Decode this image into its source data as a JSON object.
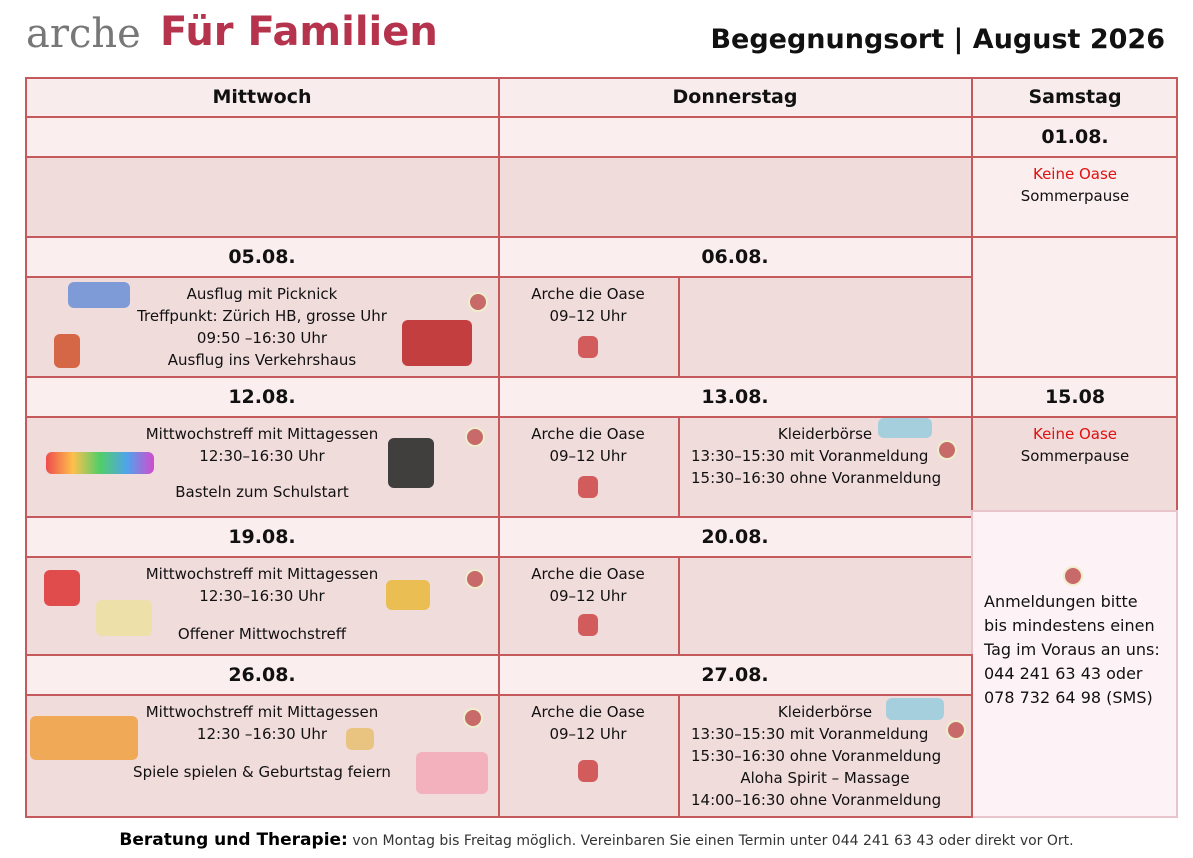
{
  "header": {
    "brand": "arche",
    "brand_accent": "Für Familien",
    "title": "Begegnungsort | August 2026"
  },
  "columns": [
    "Mittwoch",
    "Donnerstag",
    "Samstag"
  ],
  "weeks": [
    {
      "sat": {
        "date": "01.08.",
        "notice": "Keine Oase",
        "text": "Sommerpause"
      }
    },
    {
      "wed": {
        "date": "05.08.",
        "lines": [
          "Ausflug mit Picknick",
          "Treffpunkt: Zürich HB, grosse Uhr",
          "09:50 –16:30 Uhr",
          "Ausflug ins Verkehrshaus"
        ]
      },
      "thu": {
        "date": "06.08.",
        "lines": [
          "Arche die Oase",
          "09–12 Uhr"
        ]
      }
    },
    {
      "wed": {
        "date": "12.08.",
        "lines": [
          "Mittwochstreff mit Mittagessen",
          "12:30–16:30 Uhr",
          "Basteln zum Schulstart"
        ]
      },
      "thu": {
        "date": "13.08.",
        "lines": [
          "Arche die Oase",
          "09–12 Uhr"
        ]
      },
      "thu_extra": {
        "lines": [
          "Kleiderbörse",
          "13:30–15:30 mit Voranmeldung",
          "15:30–16:30 ohne Voranmeldung"
        ]
      },
      "sat": {
        "date": "15.08",
        "notice": "Keine Oase",
        "text": "Sommerpause"
      }
    },
    {
      "wed": {
        "date": "19.08.",
        "lines": [
          "Mittwochstreff mit Mittagessen",
          "12:30–16:30 Uhr",
          "Offener Mittwochstreff"
        ]
      },
      "thu": {
        "date": "20.08.",
        "lines": [
          "Arche die Oase",
          "09–12 Uhr"
        ]
      }
    },
    {
      "wed": {
        "date": "26.08.",
        "lines": [
          "Mittwochstreff mit Mittagessen",
          "12:30 –16:30 Uhr",
          "Spiele spielen & Geburtstag feiern"
        ]
      },
      "thu": {
        "date": "27.08.",
        "lines": [
          "Arche die Oase",
          "09–12 Uhr"
        ]
      },
      "thu_extra": {
        "lines": [
          "Kleiderbörse",
          "13:30–15:30 mit Voranmeldung",
          "15:30–16:30 ohne Voranmeldung",
          "Aloha Spirit – Massage",
          "14:00–16:30 ohne Voranmeldung"
        ]
      }
    }
  ],
  "note": [
    "Anmeldungen bitte",
    "bis mindestens einen",
    "Tag im Voraus an uns:",
    "044 241 63 43 oder",
    "078 732 64 98 (SMS)"
  ],
  "footer": {
    "label": "Beratung und Therapie:",
    "text": "von Montag bis Freitag möglich. Vereinbaren Sie einen Termin unter 044 241 63 43 oder direkt vor Ort."
  }
}
